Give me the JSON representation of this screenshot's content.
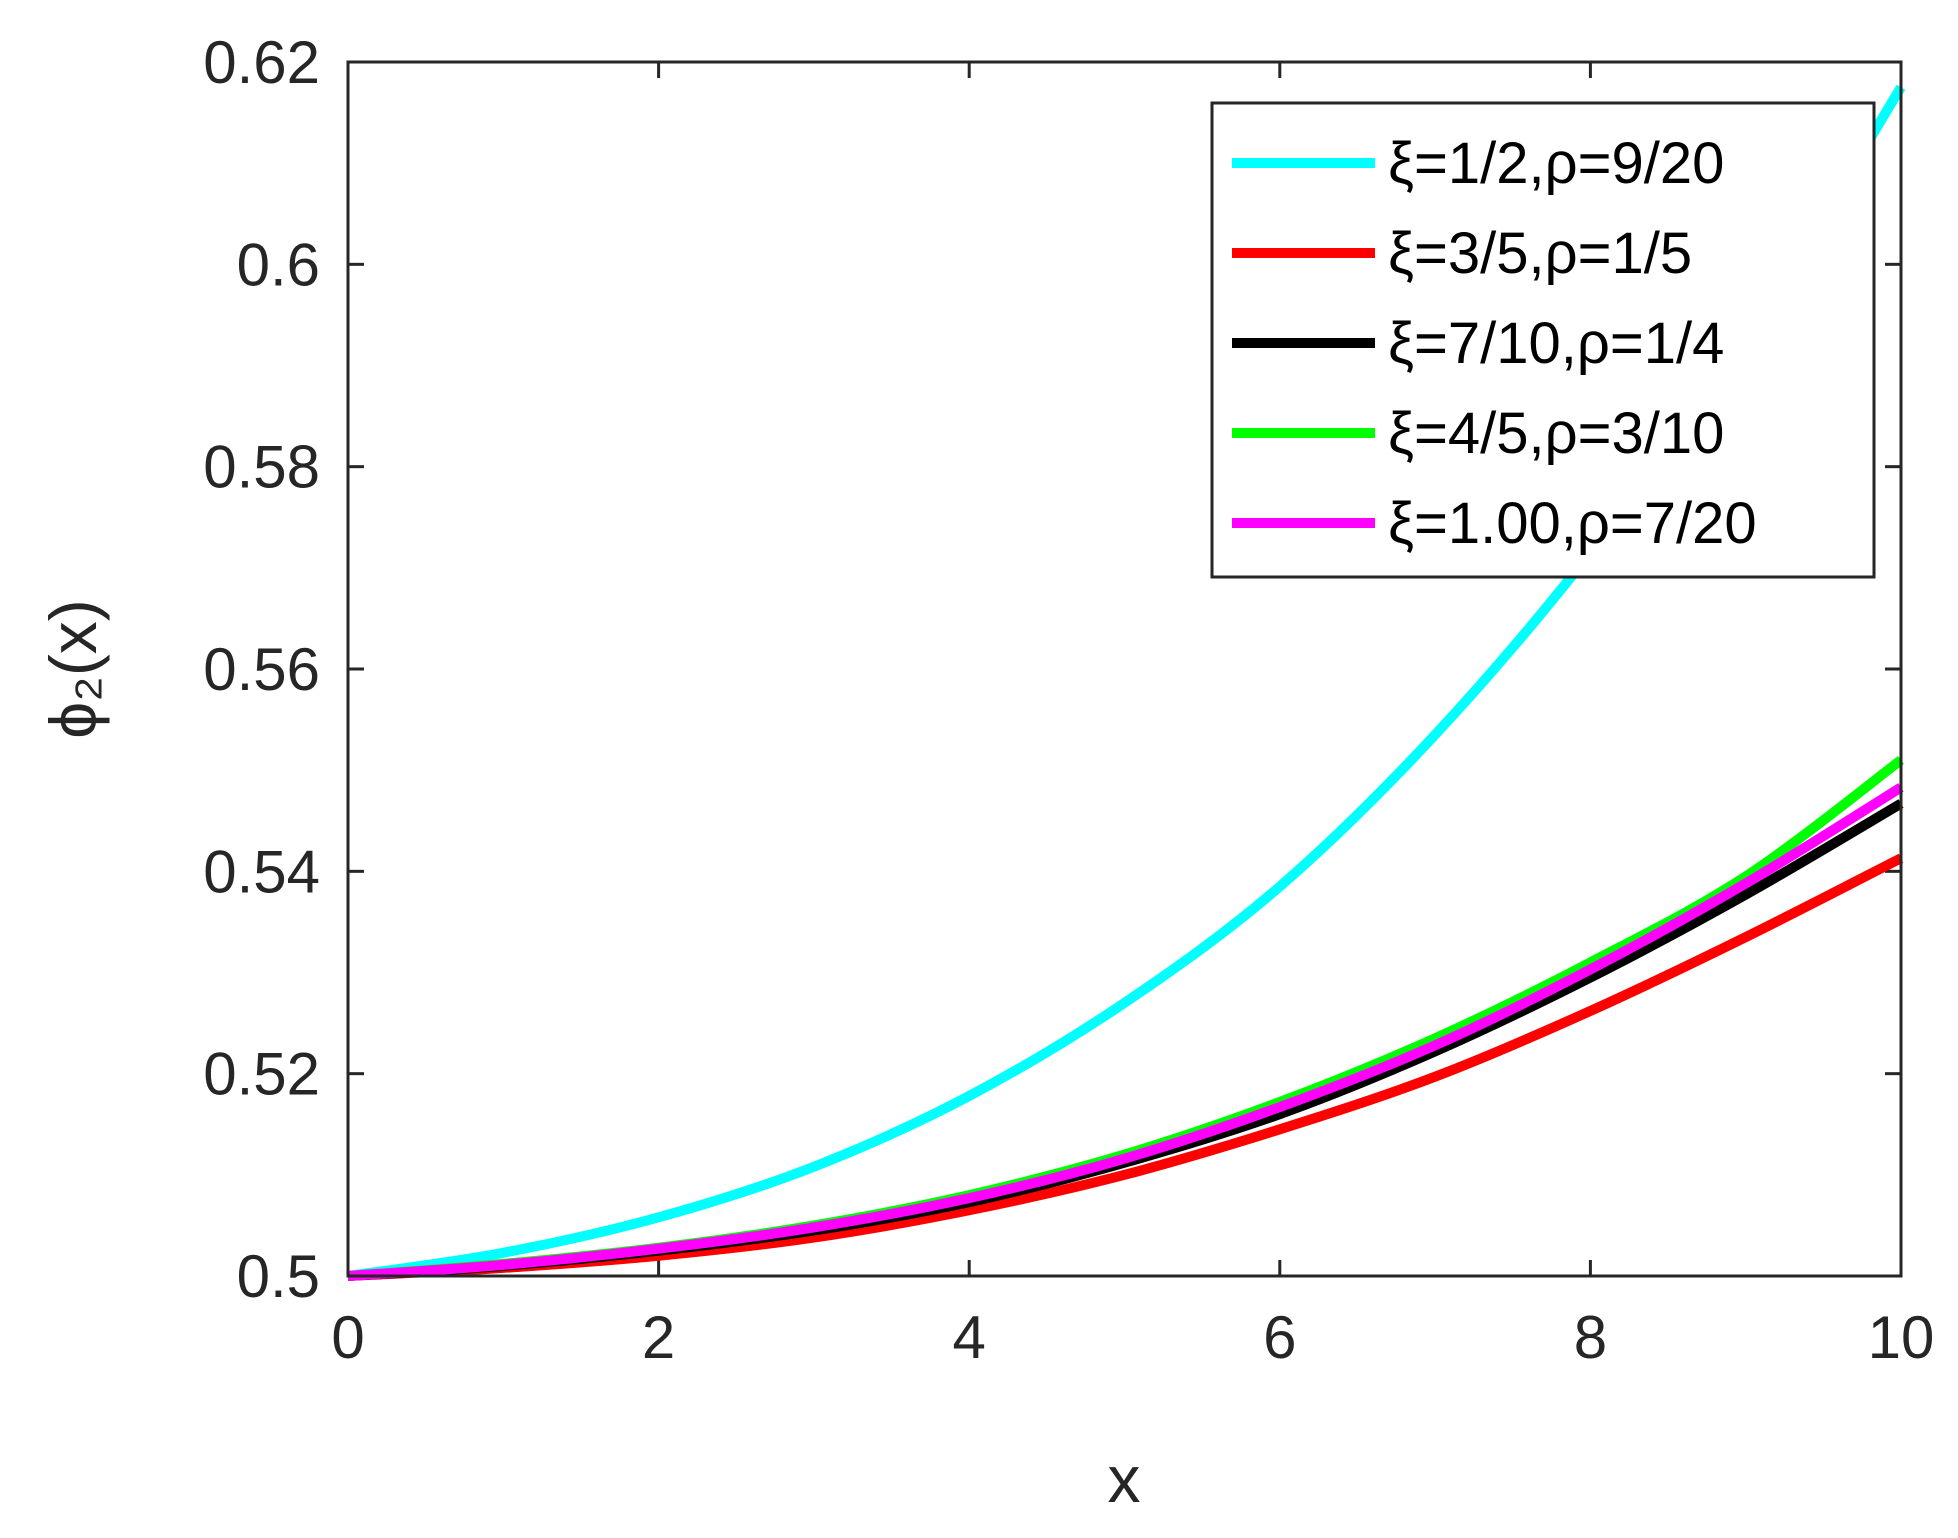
{
  "chart_data": {
    "type": "line",
    "title": "",
    "xlabel": "x",
    "ylabel": "ϕ₂(x)",
    "xlim": [
      0,
      10
    ],
    "ylim": [
      0.5,
      0.62
    ],
    "xticks": [
      0,
      2,
      4,
      6,
      8,
      10
    ],
    "xtick_labels": [
      "0",
      "2",
      "4",
      "6",
      "8",
      "10"
    ],
    "yticks": [
      0.5,
      0.52,
      0.54,
      0.56,
      0.58,
      0.6,
      0.62
    ],
    "ytick_labels": [
      "0.5",
      "0.52",
      "0.54",
      "0.56",
      "0.58",
      "0.6",
      "0.62"
    ],
    "grid": false,
    "legend_position": "top-right",
    "x": [
      0,
      1,
      2,
      3,
      4,
      5,
      6,
      7,
      8,
      9,
      10
    ],
    "series": [
      {
        "name": "ξ=1/2,ρ=9/20",
        "color": "#00ffff",
        "values": [
          0.5,
          0.5023,
          0.5058,
          0.5108,
          0.5178,
          0.527,
          0.5385,
          0.5535,
          0.5715,
          0.5925,
          0.6175
        ]
      },
      {
        "name": "ξ=3/5,ρ=1/5",
        "color": "#ff0000",
        "values": [
          0.5,
          0.5008,
          0.502,
          0.5038,
          0.5065,
          0.51,
          0.5145,
          0.5197,
          0.5262,
          0.5335,
          0.5413
        ]
      },
      {
        "name": "ξ=7/10,ρ=1/4",
        "color": "#000000",
        "values": [
          0.5,
          0.501,
          0.5025,
          0.5045,
          0.5073,
          0.5112,
          0.516,
          0.5222,
          0.5295,
          0.5377,
          0.5467
        ]
      },
      {
        "name": "ξ=4/5,ρ=3/10",
        "color": "#00ff00",
        "values": [
          0.5,
          0.5012,
          0.5028,
          0.505,
          0.508,
          0.512,
          0.5172,
          0.5235,
          0.531,
          0.5395,
          0.551
        ]
      },
      {
        "name": "ξ=1.00,ρ=7/20",
        "color": "#ff00ff",
        "values": [
          0.5,
          0.5011,
          0.5027,
          0.5048,
          0.5077,
          0.5116,
          0.5167,
          0.5228,
          0.5303,
          0.5388,
          0.5483
        ]
      }
    ]
  }
}
